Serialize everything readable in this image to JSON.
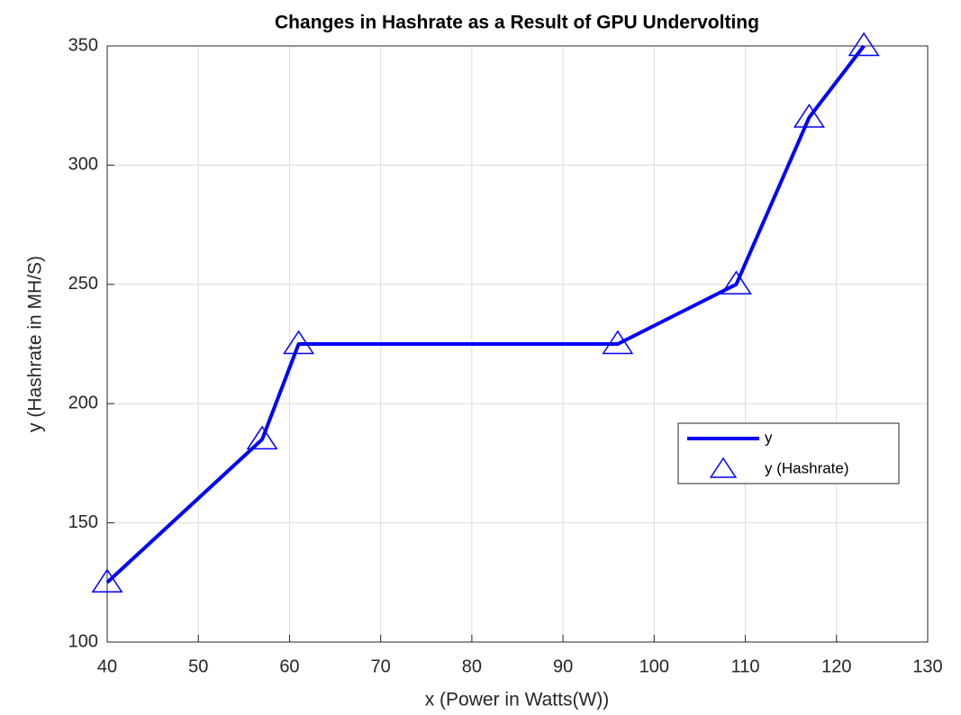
{
  "chart_data": {
    "type": "line",
    "title": "Changes in Hashrate as a Result of GPU Undervolting",
    "x_label": "x (Power in Watts(W))",
    "y_label": "y (Hashrate in MH/S)",
    "x": [
      40,
      57,
      61,
      96,
      109,
      117,
      123
    ],
    "series": [
      {
        "name": "y",
        "color": "#0000ff",
        "mode": "line",
        "values": [
          125,
          185,
          225,
          225,
          250,
          320,
          350
        ]
      },
      {
        "name": "y (Hashrate)",
        "color": "#0000ff",
        "mode": "markers",
        "marker": "triangle",
        "values": [
          125,
          185,
          225,
          225,
          250,
          320,
          350
        ]
      }
    ],
    "xlim": [
      40,
      130
    ],
    "xticks": [
      40,
      50,
      60,
      70,
      80,
      90,
      100,
      110,
      120,
      130
    ],
    "ylim": [
      100,
      350
    ],
    "yticks": [
      100,
      150,
      200,
      250,
      300,
      350
    ],
    "grid": true,
    "legend": "lower right"
  }
}
